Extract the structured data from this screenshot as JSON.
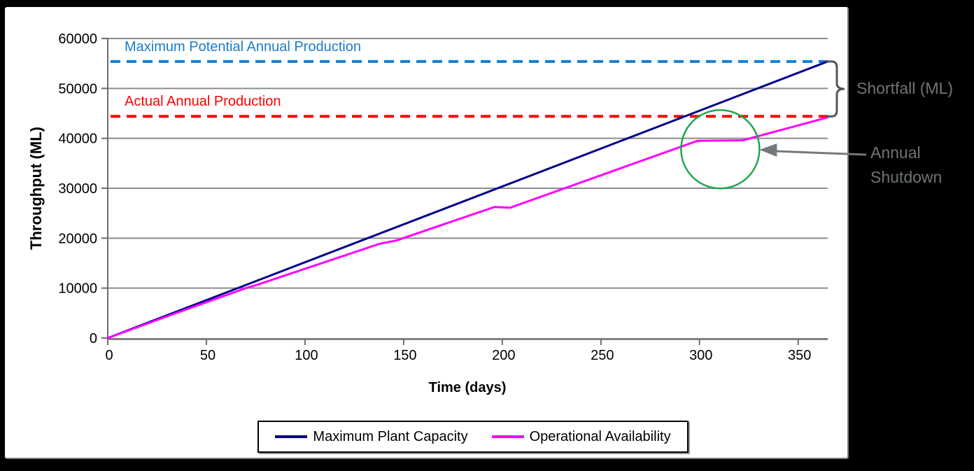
{
  "figure": {
    "background": "#000000",
    "panel_background": "#FFFFFF"
  },
  "chart_data": {
    "type": "line",
    "title": "",
    "xlabel": "Time (days)",
    "ylabel": "Throughput (ML)",
    "xlim": [
      0,
      365
    ],
    "ylim": [
      0,
      60000
    ],
    "xticks": [
      0,
      50,
      100,
      150,
      200,
      250,
      300,
      350
    ],
    "yticks": [
      0,
      10000,
      20000,
      30000,
      40000,
      50000,
      60000
    ],
    "grid": "horizontal",
    "legend_position": "bottom",
    "series": [
      {
        "name": "Maximum Plant Capacity",
        "color": "#00008B",
        "points": [
          [
            0,
            0
          ],
          [
            365,
            55400
          ]
        ]
      },
      {
        "name": "Operational Availability",
        "color": "#FF00FF",
        "points": [
          [
            0,
            0
          ],
          [
            34,
            4900
          ],
          [
            70,
            10000
          ],
          [
            76,
            10700
          ],
          [
            138,
            18900
          ],
          [
            146,
            19500
          ],
          [
            196,
            26250
          ],
          [
            204,
            26100
          ],
          [
            299,
            39500
          ],
          [
            322,
            39600
          ],
          [
            365,
            44200
          ]
        ]
      }
    ],
    "reference_lines": [
      {
        "name": "Maximum Potential Annual Production",
        "value": 55400,
        "color": "#1B7CC9",
        "style": "dashed"
      },
      {
        "name": "Actual Annual Production",
        "value": 44400,
        "color": "#FF0000",
        "style": "dashed"
      }
    ],
    "annotations": [
      {
        "text": "Shortfall (ML)",
        "kind": "brace",
        "from_value": 55400,
        "to_value": 44400,
        "color": "#6F7478"
      },
      {
        "text": "Annual Shutdown",
        "kind": "circle-arrow",
        "day_range": [
          299,
          322
        ],
        "value": 39500,
        "color": "#6F7478",
        "circle_color": "#1FA84F"
      }
    ]
  }
}
